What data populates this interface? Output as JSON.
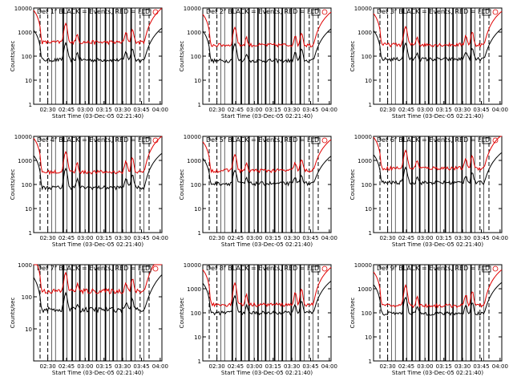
{
  "chart_data": [
    {
      "type": "line",
      "title": "Det 1f BLACK = Events, RED = LLD",
      "xlabel": "Start Time (03-Dec-05 02:21:40)",
      "ylabel": "Counts/sec",
      "yscale": "log",
      "ylim": [
        1,
        10000
      ],
      "x_ticks": [
        "02:30",
        "02:45",
        "03:00",
        "03:15",
        "03:30",
        "03:45",
        "04:00"
      ],
      "y_ticks": [
        "1",
        "10",
        "100",
        "1000",
        "10000"
      ],
      "series": [
        {
          "color": "#000000",
          "base": 70,
          "peak": 280
        },
        {
          "color": "#e00000",
          "base": 380,
          "peak": 1900
        }
      ]
    },
    {
      "type": "line",
      "title": "Det 2f BLACK = Events, RED = LLD",
      "xlabel": "Start Time (03-Dec-05 02:21:40)",
      "ylabel": "Counts/sec",
      "yscale": "log",
      "ylim": [
        1,
        10000
      ],
      "x_ticks": [
        "02:30",
        "02:45",
        "03:00",
        "03:15",
        "03:30",
        "03:45",
        "04:00"
      ],
      "y_ticks": [
        "1",
        "10",
        "100",
        "1000",
        "10000"
      ],
      "series": [
        {
          "color": "#000000",
          "base": 65,
          "peak": 260
        },
        {
          "color": "#e00000",
          "base": 290,
          "peak": 1300
        }
      ]
    },
    {
      "type": "line",
      "title": "Det 3f BLACK = Events, RED = LLD",
      "xlabel": "Start Time (03-Dec-05 02:21:40)",
      "ylabel": "Counts/sec",
      "yscale": "log",
      "ylim": [
        1,
        10000
      ],
      "x_ticks": [
        "02:30",
        "02:45",
        "03:00",
        "03:15",
        "03:30",
        "03:45",
        "04:00"
      ],
      "y_ticks": [
        "1",
        "10",
        "100",
        "1000",
        "10000"
      ],
      "series": [
        {
          "color": "#000000",
          "base": 75,
          "peak": 270
        },
        {
          "color": "#e00000",
          "base": 300,
          "peak": 1400
        }
      ]
    },
    {
      "type": "line",
      "title": "Det 4f BLACK = Events, RED = LLD",
      "xlabel": "Start Time (03-Dec-05 02:21:40)",
      "ylabel": "Counts/sec",
      "yscale": "log",
      "ylim": [
        1,
        10000
      ],
      "x_ticks": [
        "02:30",
        "02:45",
        "03:00",
        "03:15",
        "03:30",
        "03:45",
        "04:00"
      ],
      "y_ticks": [
        "1",
        "10",
        "100",
        "1000",
        "10000"
      ],
      "series": [
        {
          "color": "#000000",
          "base": 75,
          "peak": 380
        },
        {
          "color": "#e00000",
          "base": 330,
          "peak": 2000
        }
      ]
    },
    {
      "type": "line",
      "title": "Det 5f BLACK = Events, RED = LLD",
      "xlabel": "Start Time (03-Dec-05 02:21:40)",
      "ylabel": "Counts/sec",
      "yscale": "log",
      "ylim": [
        1,
        10000
      ],
      "x_ticks": [
        "02:30",
        "02:45",
        "03:00",
        "03:15",
        "03:30",
        "03:45",
        "04:00"
      ],
      "y_ticks": [
        "1",
        "10",
        "100",
        "1000",
        "10000"
      ],
      "series": [
        {
          "color": "#000000",
          "base": 110,
          "peak": 280
        },
        {
          "color": "#e00000",
          "base": 380,
          "peak": 1400
        }
      ]
    },
    {
      "type": "line",
      "title": "Det 6f BLACK = Events, RED = LLD",
      "xlabel": "Start Time (03-Dec-05 02:21:40)",
      "ylabel": "Counts/sec",
      "yscale": "log",
      "ylim": [
        1,
        10000
      ],
      "x_ticks": [
        "02:30",
        "02:45",
        "03:00",
        "03:15",
        "03:30",
        "03:45",
        "04:00"
      ],
      "y_ticks": [
        "1",
        "10",
        "100",
        "1000",
        "10000"
      ],
      "series": [
        {
          "color": "#000000",
          "base": 120,
          "peak": 400
        },
        {
          "color": "#e00000",
          "base": 480,
          "peak": 2200
        }
      ]
    },
    {
      "type": "line",
      "title": "Det 7f BLACK = Events, RED = LLD",
      "xlabel": "Start Time (03-Dec-05 02:21:40)",
      "ylabel": "Counts/sec",
      "yscale": "log",
      "ylim": [
        1,
        1000
      ],
      "x_ticks": [
        "02:30",
        "02:45",
        "03:00",
        "03:15",
        "03:30",
        "03:45",
        "04:00"
      ],
      "y_ticks": [
        "10",
        "100",
        "1000"
      ],
      "series": [
        {
          "color": "#000000",
          "base": 40,
          "peak": 90
        },
        {
          "color": "#e00000",
          "base": 150,
          "peak": 420
        }
      ]
    },
    {
      "type": "line",
      "title": "Det 8f BLACK = Events, RED = LLD",
      "xlabel": "Start Time (03-Dec-05 02:21:40)",
      "ylabel": "Counts/sec",
      "yscale": "log",
      "ylim": [
        1,
        10000
      ],
      "x_ticks": [
        "02:30",
        "02:45",
        "03:00",
        "03:15",
        "03:30",
        "03:45",
        "04:00"
      ],
      "y_ticks": [
        "1",
        "10",
        "100",
        "1000",
        "10000"
      ],
      "series": [
        {
          "color": "#000000",
          "base": 100,
          "peak": 400
        },
        {
          "color": "#e00000",
          "base": 220,
          "peak": 1500
        }
      ]
    },
    {
      "type": "line",
      "title": "Det 9f BLACK = Events, RED = LLD",
      "xlabel": "Start Time (03-Dec-05 02:21:40)",
      "ylabel": "Counts/sec",
      "yscale": "log",
      "ylim": [
        1,
        10000
      ],
      "x_ticks": [
        "02:30",
        "02:45",
        "03:00",
        "03:15",
        "03:30",
        "03:45",
        "04:00"
      ],
      "y_ticks": [
        "1",
        "10",
        "100",
        "1000",
        "10000"
      ],
      "series": [
        {
          "color": "#000000",
          "base": 95,
          "peak": 350
        },
        {
          "color": "#e00000",
          "base": 200,
          "peak": 1200
        }
      ]
    }
  ]
}
